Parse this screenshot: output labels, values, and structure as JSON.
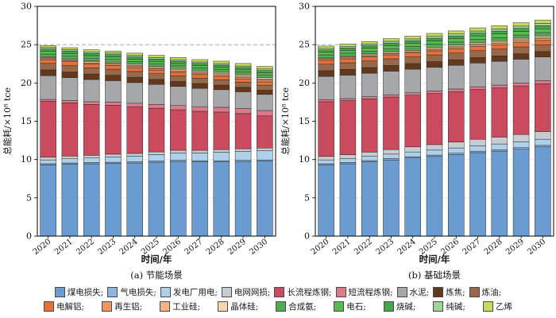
{
  "figure": {
    "y_axis_label": "总能耗/×10⁸ tce",
    "x_axis_label": "时间/年",
    "caption_a": "(a) 节能场景",
    "caption_b": "(b) 基础场景"
  },
  "palette": {
    "煤电损失": "#6B9CD1",
    "气电损失": "#8CB6DE",
    "发电厂用电": "#AFD0EA",
    "电网网损": "#C7CCD1",
    "长流程炼钢": "#CA4A5E",
    "短流程炼钢": "#DB7A8A",
    "水泥": "#A5A7AA",
    "炼焦": "#63381C",
    "炼油": "#97684A",
    "电解铝": "#E5703A",
    "再生铝": "#EF9560",
    "工业硅": "#F4B385",
    "晶体硅": "#F9D4B0",
    "合成氨": "#4FAE50",
    "电石": "#5ABA52",
    "烧碱": "#43A648",
    "纯碱": "#A0D399",
    "乙烯": "#C6DB5E"
  },
  "legend": {
    "rows": [
      [
        "煤电损失;",
        "气电损失;",
        "发电厂用电;",
        "电网网损;",
        "长流程炼钢;",
        "短流程炼钢;",
        "水泥;",
        "炼焦;",
        "炼油;"
      ],
      [
        "电解铝;",
        "再生铝;",
        "工业硅;",
        "晶体硅;",
        "合成氨;",
        "电石;",
        "烧碱;",
        "纯碱;",
        "乙烯"
      ]
    ],
    "row_keys": [
      [
        "煤电损失",
        "气电损失",
        "发电厂用电",
        "电网网损",
        "长流程炼钢",
        "短流程炼钢",
        "水泥",
        "炼焦",
        "炼油"
      ],
      [
        "电解铝",
        "再生铝",
        "工业硅",
        "晶体硅",
        "合成氨",
        "电石",
        "烧碱",
        "纯碱",
        "乙烯"
      ]
    ]
  },
  "chart_data": [
    {
      "type": "bar",
      "stacked": true,
      "title": "(a) 节能场景",
      "xlabel": "时间/年",
      "ylabel": "总能耗/×10⁸ tce",
      "ylim": [
        0,
        30
      ],
      "yticks": [
        0,
        5,
        10,
        15,
        20,
        25,
        30
      ],
      "reference_line": 25,
      "grid": "dashed horizontal",
      "legend_position": "below figure, shared",
      "categories": [
        "2020",
        "2021",
        "2022",
        "2023",
        "2024",
        "2025",
        "2026",
        "2027",
        "2028",
        "2029",
        "2030"
      ],
      "series": [
        {
          "name": "煤电损失",
          "values": [
            9.3,
            9.4,
            9.45,
            9.5,
            9.55,
            9.65,
            9.75,
            9.7,
            9.7,
            9.75,
            9.8
          ]
        },
        {
          "name": "气电损失",
          "values": [
            0.15,
            0.15,
            0.15,
            0.15,
            0.15,
            0.15,
            0.15,
            0.15,
            0.15,
            0.15,
            0.15
          ]
        },
        {
          "name": "发电厂用电",
          "values": [
            0.5,
            0.55,
            0.6,
            0.7,
            0.75,
            0.85,
            0.95,
            1.0,
            1.1,
            1.15,
            1.2
          ]
        },
        {
          "name": "电网网损",
          "values": [
            0.35,
            0.35,
            0.35,
            0.35,
            0.35,
            0.35,
            0.35,
            0.35,
            0.35,
            0.35,
            0.35
          ]
        },
        {
          "name": "长流程炼钢",
          "values": [
            7.3,
            6.95,
            6.65,
            6.4,
            6.1,
            5.7,
            5.3,
            5.1,
            4.9,
            4.6,
            4.2
          ]
        },
        {
          "name": "短流程炼钢",
          "values": [
            0.25,
            0.3,
            0.35,
            0.4,
            0.45,
            0.5,
            0.55,
            0.6,
            0.62,
            0.65,
            0.7
          ]
        },
        {
          "name": "水泥",
          "values": [
            3.1,
            3.0,
            2.9,
            2.8,
            2.7,
            2.6,
            2.5,
            2.4,
            2.3,
            2.2,
            2.1
          ]
        },
        {
          "name": "炼焦",
          "values": [
            0.75,
            0.73,
            0.71,
            0.7,
            0.68,
            0.66,
            0.64,
            0.62,
            0.6,
            0.58,
            0.56
          ]
        },
        {
          "name": "炼油",
          "values": [
            0.85,
            0.83,
            0.81,
            0.79,
            0.77,
            0.75,
            0.73,
            0.71,
            0.69,
            0.67,
            0.65
          ]
        },
        {
          "name": "电解铝",
          "values": [
            0.5,
            0.5,
            0.5,
            0.5,
            0.49,
            0.48,
            0.47,
            0.46,
            0.45,
            0.44,
            0.43
          ]
        },
        {
          "name": "再生铝",
          "values": [
            0.12,
            0.13,
            0.14,
            0.15,
            0.16,
            0.17,
            0.18,
            0.19,
            0.2,
            0.21,
            0.22
          ]
        },
        {
          "name": "工业硅",
          "values": [
            0.15,
            0.15,
            0.15,
            0.15,
            0.15,
            0.15,
            0.15,
            0.15,
            0.15,
            0.15,
            0.15
          ]
        },
        {
          "name": "晶体硅",
          "values": [
            0.1,
            0.11,
            0.12,
            0.13,
            0.14,
            0.15,
            0.16,
            0.17,
            0.18,
            0.19,
            0.2
          ]
        },
        {
          "name": "合成氨",
          "values": [
            0.35,
            0.35,
            0.35,
            0.35,
            0.35,
            0.35,
            0.35,
            0.35,
            0.35,
            0.35,
            0.35
          ]
        },
        {
          "name": "电石",
          "values": [
            0.35,
            0.34,
            0.33,
            0.32,
            0.31,
            0.3,
            0.3,
            0.29,
            0.28,
            0.27,
            0.26
          ]
        },
        {
          "name": "烧碱",
          "values": [
            0.3,
            0.3,
            0.3,
            0.3,
            0.3,
            0.3,
            0.3,
            0.3,
            0.3,
            0.3,
            0.3
          ]
        },
        {
          "name": "纯碱",
          "values": [
            0.2,
            0.2,
            0.2,
            0.2,
            0.2,
            0.2,
            0.2,
            0.2,
            0.2,
            0.2,
            0.2
          ]
        },
        {
          "name": "乙烯",
          "values": [
            0.25,
            0.26,
            0.27,
            0.28,
            0.29,
            0.3,
            0.3,
            0.31,
            0.32,
            0.33,
            0.34
          ]
        }
      ]
    },
    {
      "type": "bar",
      "stacked": true,
      "title": "(b) 基础场景",
      "xlabel": "时间/年",
      "ylabel": "总能耗/×10⁸ tce",
      "ylim": [
        0,
        30
      ],
      "yticks": [
        0,
        5,
        10,
        15,
        20,
        25,
        30
      ],
      "reference_line": 25,
      "grid": "dashed horizontal",
      "legend_position": "below figure, shared",
      "categories": [
        "2020",
        "2021",
        "2022",
        "2023",
        "2024",
        "2025",
        "2026",
        "2027",
        "2028",
        "2029",
        "2030"
      ],
      "series": [
        {
          "name": "煤电损失",
          "values": [
            9.3,
            9.45,
            9.7,
            9.95,
            10.2,
            10.4,
            10.65,
            10.9,
            11.1,
            11.35,
            11.65
          ]
        },
        {
          "name": "气电损失",
          "values": [
            0.15,
            0.16,
            0.16,
            0.17,
            0.17,
            0.18,
            0.18,
            0.19,
            0.19,
            0.2,
            0.2
          ]
        },
        {
          "name": "发电厂用电",
          "values": [
            0.5,
            0.53,
            0.56,
            0.59,
            0.62,
            0.65,
            0.68,
            0.71,
            0.74,
            0.77,
            0.8
          ]
        },
        {
          "name": "电网网损",
          "values": [
            0.45,
            0.5,
            0.55,
            0.6,
            0.66,
            0.72,
            0.78,
            0.84,
            0.9,
            0.95,
            1.0
          ]
        },
        {
          "name": "长流程炼钢",
          "values": [
            7.15,
            7.05,
            6.95,
            6.85,
            6.75,
            6.67,
            6.58,
            6.5,
            6.42,
            6.34,
            6.25
          ]
        },
        {
          "name": "短流程炼钢",
          "values": [
            0.25,
            0.27,
            0.28,
            0.3,
            0.31,
            0.33,
            0.34,
            0.36,
            0.37,
            0.39,
            0.4
          ]
        },
        {
          "name": "水泥",
          "values": [
            3.05,
            3.06,
            3.07,
            3.08,
            3.09,
            3.1,
            3.1,
            3.1,
            3.1,
            3.1,
            3.1
          ]
        },
        {
          "name": "炼焦",
          "values": [
            0.75,
            0.75,
            0.74,
            0.74,
            0.73,
            0.73,
            0.72,
            0.72,
            0.71,
            0.71,
            0.7
          ]
        },
        {
          "name": "炼油",
          "values": [
            0.85,
            0.86,
            0.86,
            0.87,
            0.87,
            0.88,
            0.88,
            0.89,
            0.89,
            0.9,
            0.9
          ]
        },
        {
          "name": "电解铝",
          "values": [
            0.5,
            0.51,
            0.51,
            0.52,
            0.52,
            0.53,
            0.53,
            0.54,
            0.54,
            0.55,
            0.55
          ]
        },
        {
          "name": "再生铝",
          "values": [
            0.12,
            0.13,
            0.14,
            0.15,
            0.16,
            0.17,
            0.18,
            0.19,
            0.2,
            0.21,
            0.22
          ]
        },
        {
          "name": "工业硅",
          "values": [
            0.15,
            0.15,
            0.16,
            0.16,
            0.17,
            0.17,
            0.18,
            0.18,
            0.19,
            0.19,
            0.2
          ]
        },
        {
          "name": "晶体硅",
          "values": [
            0.1,
            0.11,
            0.12,
            0.13,
            0.14,
            0.15,
            0.16,
            0.17,
            0.18,
            0.19,
            0.2
          ]
        },
        {
          "name": "合成氨",
          "values": [
            0.35,
            0.36,
            0.36,
            0.37,
            0.37,
            0.38,
            0.38,
            0.39,
            0.39,
            0.4,
            0.4
          ]
        },
        {
          "name": "电石",
          "values": [
            0.35,
            0.37,
            0.38,
            0.4,
            0.41,
            0.43,
            0.44,
            0.46,
            0.47,
            0.49,
            0.5
          ]
        },
        {
          "name": "烧碱",
          "values": [
            0.3,
            0.31,
            0.32,
            0.33,
            0.34,
            0.35,
            0.36,
            0.37,
            0.38,
            0.39,
            0.4
          ]
        },
        {
          "name": "纯碱",
          "values": [
            0.2,
            0.21,
            0.22,
            0.23,
            0.24,
            0.25,
            0.26,
            0.27,
            0.28,
            0.29,
            0.3
          ]
        },
        {
          "name": "乙烯",
          "values": [
            0.3,
            0.32,
            0.33,
            0.35,
            0.36,
            0.38,
            0.39,
            0.41,
            0.42,
            0.44,
            0.45
          ]
        }
      ]
    }
  ]
}
